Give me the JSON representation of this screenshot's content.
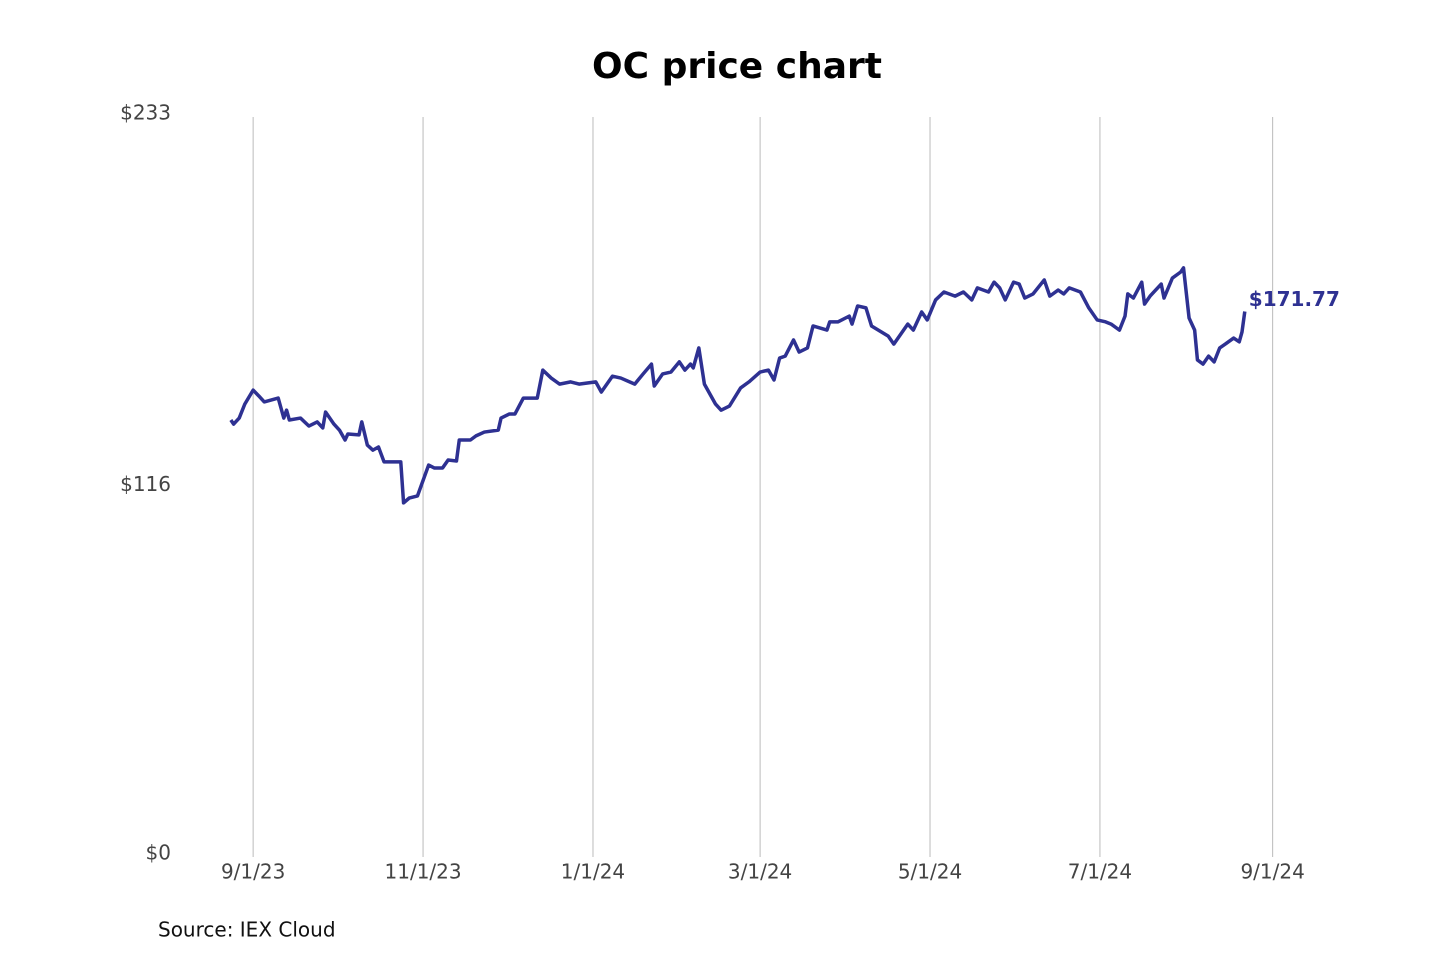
{
  "chart_data": {
    "type": "line",
    "title": "OC price chart",
    "source": "Source: IEX Cloud",
    "x": [
      "2023-08-24",
      "2023-08-25",
      "2023-08-27",
      "2023-08-29",
      "2023-09-01",
      "2023-09-03",
      "2023-09-05",
      "2023-09-10",
      "2023-09-12",
      "2023-09-13",
      "2023-09-14",
      "2023-09-18",
      "2023-09-21",
      "2023-09-24",
      "2023-09-26",
      "2023-09-27",
      "2023-09-30",
      "2023-10-02",
      "2023-10-04",
      "2023-10-05",
      "2023-10-09",
      "2023-10-10",
      "2023-10-12",
      "2023-10-14",
      "2023-10-16",
      "2023-10-18",
      "2023-10-24",
      "2023-10-25",
      "2023-10-27",
      "2023-10-30",
      "2023-11-03",
      "2023-11-05",
      "2023-11-08",
      "2023-11-10",
      "2023-11-13",
      "2023-11-14",
      "2023-11-18",
      "2023-11-20",
      "2023-11-23",
      "2023-11-28",
      "2023-11-29",
      "2023-12-02",
      "2023-12-04",
      "2023-12-07",
      "2023-12-12",
      "2023-12-14",
      "2023-12-17",
      "2023-12-20",
      "2023-12-24",
      "2023-12-27",
      "2024-01-02",
      "2024-01-04",
      "2024-01-08",
      "2024-01-11",
      "2024-01-16",
      "2024-01-19",
      "2024-01-22",
      "2024-01-23",
      "2024-01-26",
      "2024-01-29",
      "2024-02-01",
      "2024-02-03",
      "2024-02-05",
      "2024-02-06",
      "2024-02-08",
      "2024-02-10",
      "2024-02-14",
      "2024-02-16",
      "2024-02-19",
      "2024-02-23",
      "2024-02-26",
      "2024-03-01",
      "2024-03-04",
      "2024-03-06",
      "2024-03-08",
      "2024-03-10",
      "2024-03-13",
      "2024-03-15",
      "2024-03-18",
      "2024-03-20",
      "2024-03-25",
      "2024-03-26",
      "2024-03-29",
      "2024-04-02",
      "2024-04-03",
      "2024-04-05",
      "2024-04-08",
      "2024-04-10",
      "2024-04-16",
      "2024-04-18",
      "2024-04-23",
      "2024-04-25",
      "2024-04-28",
      "2024-04-30",
      "2024-05-03",
      "2024-05-06",
      "2024-05-10",
      "2024-05-13",
      "2024-05-16",
      "2024-05-18",
      "2024-05-22",
      "2024-05-24",
      "2024-05-26",
      "2024-05-28",
      "2024-05-31",
      "2024-06-02",
      "2024-06-04",
      "2024-06-07",
      "2024-06-11",
      "2024-06-13",
      "2024-06-16",
      "2024-06-18",
      "2024-06-20",
      "2024-06-24",
      "2024-06-27",
      "2024-06-30",
      "2024-07-03",
      "2024-07-05",
      "2024-07-08",
      "2024-07-10",
      "2024-07-11",
      "2024-07-13",
      "2024-07-16",
      "2024-07-17",
      "2024-07-19",
      "2024-07-23",
      "2024-07-24",
      "2024-07-27",
      "2024-07-30",
      "2024-07-31",
      "2024-08-02",
      "2024-08-04",
      "2024-08-05",
      "2024-08-07",
      "2024-08-09",
      "2024-08-11",
      "2024-08-13",
      "2024-08-15",
      "2024-08-18",
      "2024-08-20",
      "2024-08-21",
      "2024-08-22"
    ],
    "series": [
      {
        "color": "#2e3192",
        "values": [
          137.6,
          136.3,
          138.2,
          142.6,
          147.0,
          145.2,
          143.3,
          144.5,
          138.2,
          140.7,
          137.6,
          138.2,
          135.7,
          137.0,
          135.1,
          140.1,
          136.3,
          134.4,
          131.3,
          133.2,
          132.9,
          137.0,
          129.7,
          128.1,
          129.1,
          124.4,
          124.4,
          111.5,
          113.0,
          113.7,
          123.4,
          122.5,
          122.5,
          125.0,
          124.7,
          131.3,
          131.3,
          132.6,
          133.8,
          134.4,
          138.2,
          139.5,
          139.5,
          144.5,
          144.5,
          153.3,
          150.8,
          148.9,
          149.6,
          148.9,
          149.6,
          146.4,
          151.4,
          150.8,
          148.9,
          152.1,
          155.2,
          148.3,
          152.1,
          152.7,
          155.9,
          153.3,
          155.2,
          154.0,
          160.3,
          148.9,
          142.6,
          140.7,
          142.0,
          147.7,
          149.6,
          152.7,
          153.3,
          150.2,
          157.1,
          157.7,
          162.8,
          159.0,
          160.3,
          167.2,
          165.9,
          168.5,
          168.5,
          170.3,
          167.8,
          173.5,
          172.9,
          167.2,
          164.0,
          161.5,
          167.8,
          165.9,
          171.6,
          169.1,
          175.4,
          177.9,
          176.6,
          177.9,
          175.4,
          179.2,
          177.9,
          181.0,
          179.2,
          175.4,
          181.0,
          180.4,
          176.0,
          177.3,
          181.7,
          176.6,
          178.5,
          177.3,
          179.2,
          177.9,
          172.9,
          169.1,
          168.5,
          167.8,
          165.9,
          170.3,
          177.3,
          176.0,
          181.0,
          174.1,
          176.6,
          180.4,
          176.0,
          182.3,
          184.2,
          185.5,
          169.7,
          165.9,
          156.5,
          155.2,
          157.7,
          155.9,
          160.3,
          161.5,
          163.4,
          162.2,
          165.3,
          171.77
        ],
        "value_labels": [
          null,
          null,
          null,
          null,
          null,
          null,
          null,
          null,
          null,
          null,
          null,
          null,
          null,
          null,
          null,
          null,
          null,
          null,
          null,
          null,
          null,
          null,
          null,
          null,
          null,
          null,
          null,
          null,
          null,
          null,
          null,
          null,
          null,
          null,
          null,
          null,
          null,
          null,
          null,
          null,
          null,
          null,
          null,
          null,
          null,
          null,
          null,
          null,
          null,
          null,
          null,
          null,
          null,
          null,
          null,
          null,
          null,
          null,
          null,
          null,
          null,
          null,
          null,
          null,
          null,
          null,
          null,
          null,
          null,
          null,
          null,
          null,
          null,
          null,
          null,
          null,
          null,
          null,
          null,
          null,
          null,
          null,
          null,
          null,
          null,
          null,
          null,
          null,
          null,
          null,
          null,
          null,
          null,
          null,
          null,
          null,
          null,
          null,
          null,
          null,
          null,
          null,
          null,
          null,
          null,
          null,
          null,
          null,
          null,
          null,
          null,
          null,
          null,
          null,
          null,
          null,
          null,
          null,
          null,
          null,
          null,
          null,
          null,
          null,
          null,
          null,
          null,
          null,
          null,
          null,
          null,
          null,
          null,
          null,
          null,
          null,
          null,
          null,
          null,
          null,
          null,
          "$171.77"
        ]
      }
    ],
    "xlim": [
      "2023-08-14",
      "2024-09-18"
    ],
    "xticks": [
      {
        "value": "2023-09-01",
        "label": "9/1/23"
      },
      {
        "value": "2023-11-01",
        "label": "11/1/23"
      },
      {
        "value": "2024-01-01",
        "label": "1/1/24"
      },
      {
        "value": "2024-03-01",
        "label": "3/1/24"
      },
      {
        "value": "2024-05-01",
        "label": "5/1/24"
      },
      {
        "value": "2024-07-01",
        "label": "7/1/24"
      },
      {
        "value": "2024-09-01",
        "label": "9/1/24"
      }
    ],
    "ylim": [
      0,
      233
    ],
    "yticks": [
      {
        "value": 0,
        "label": "$0"
      },
      {
        "value": 116,
        "label": "$116"
      },
      {
        "value": 233,
        "label": "$233"
      }
    ],
    "grid": "x"
  }
}
